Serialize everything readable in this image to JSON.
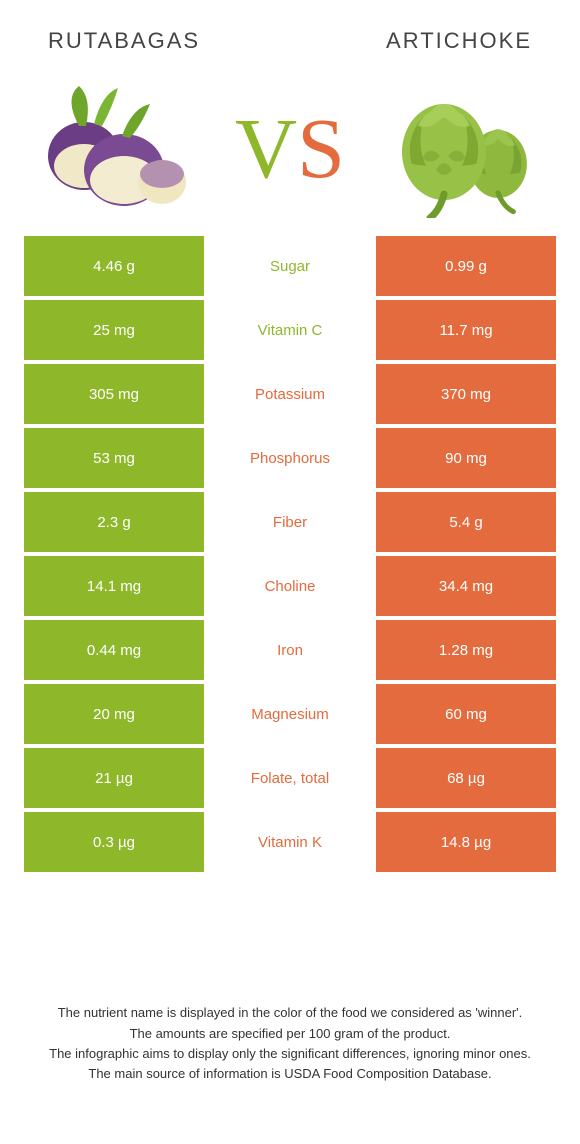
{
  "colors": {
    "green": "#8eb82a",
    "orange": "#e46b3e",
    "text": "#333333",
    "white": "#ffffff"
  },
  "left": {
    "name": "Rutabagas"
  },
  "right": {
    "name": "Artichoke"
  },
  "vs": {
    "v": "V",
    "s": "S"
  },
  "rows": [
    {
      "label": "Sugar",
      "left": "4.46 g",
      "right": "0.99 g",
      "winner": "left"
    },
    {
      "label": "Vitamin C",
      "left": "25 mg",
      "right": "11.7 mg",
      "winner": "left"
    },
    {
      "label": "Potassium",
      "left": "305 mg",
      "right": "370 mg",
      "winner": "right"
    },
    {
      "label": "Phosphorus",
      "left": "53 mg",
      "right": "90 mg",
      "winner": "right"
    },
    {
      "label": "Fiber",
      "left": "2.3 g",
      "right": "5.4 g",
      "winner": "right"
    },
    {
      "label": "Choline",
      "left": "14.1 mg",
      "right": "34.4 mg",
      "winner": "right"
    },
    {
      "label": "Iron",
      "left": "0.44 mg",
      "right": "1.28 mg",
      "winner": "right"
    },
    {
      "label": "Magnesium",
      "left": "20 mg",
      "right": "60 mg",
      "winner": "right"
    },
    {
      "label": "Folate, total",
      "left": "21 µg",
      "right": "68 µg",
      "winner": "right"
    },
    {
      "label": "Vitamin K",
      "left": "0.3 µg",
      "right": "14.8 µg",
      "winner": "right"
    }
  ],
  "footer": {
    "l1": "The nutrient name is displayed in the color of the food we considered as 'winner'.",
    "l2": "The amounts are specified per 100 gram of the product.",
    "l3": "The infographic aims to display only the significant differences, ignoring minor ones.",
    "l4": "The main source of information is USDA Food Composition Database."
  }
}
